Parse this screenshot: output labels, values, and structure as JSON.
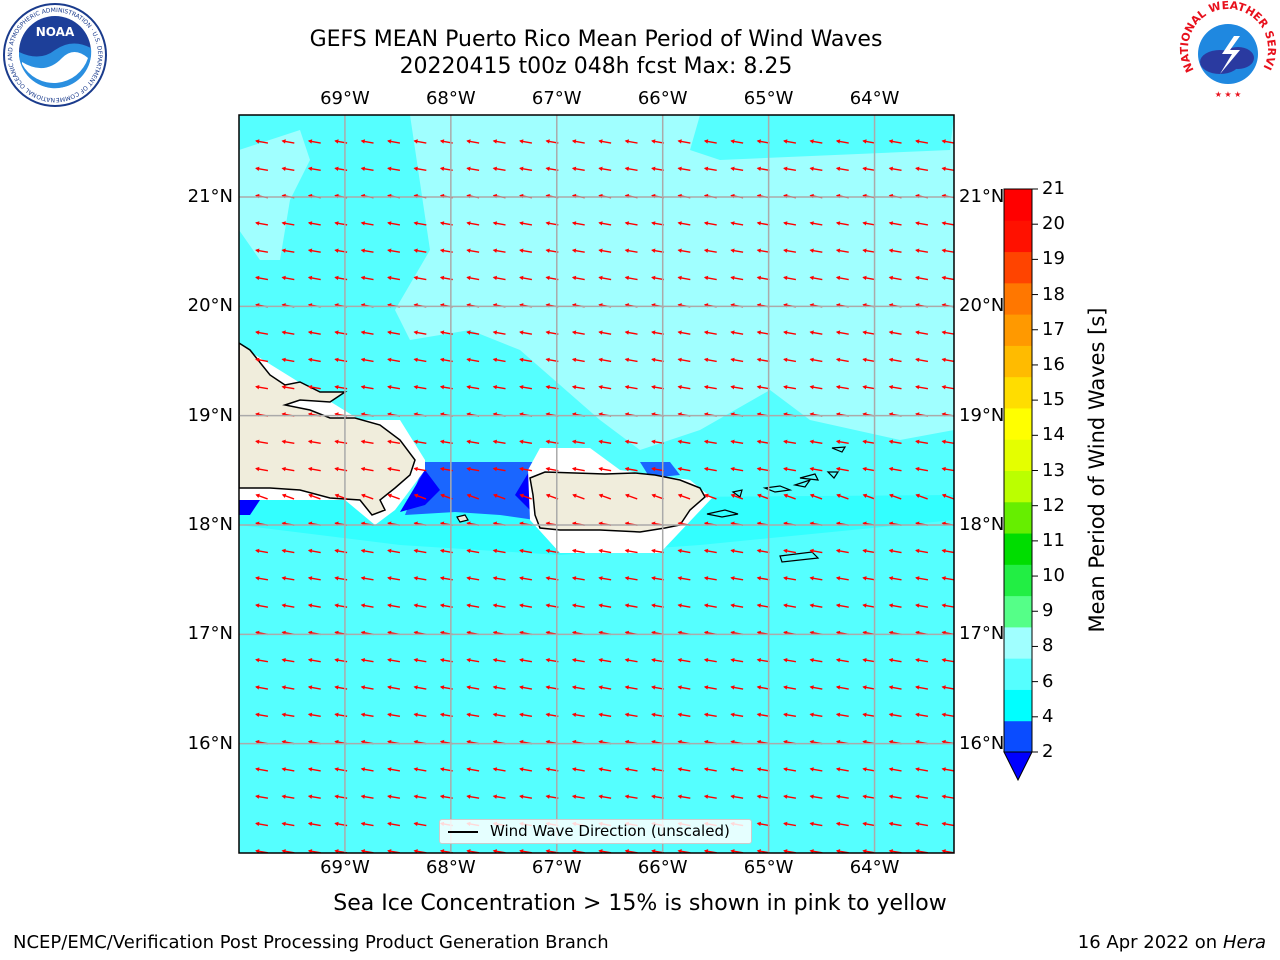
{
  "header": {
    "title_line1": "GEFS MEAN Puerto Rico Mean Period of Wind Waves",
    "title_line2": "20220415 t00z 048h fcst   Max: 8.25"
  },
  "logos": {
    "noaa_text": "NOAA",
    "noaa_ring_text": "NATIONAL OCEANIC AND ATMOSPHERIC ADMINISTRATION · U.S. DEPARTMENT OF COMMERCE",
    "nws_ring_text": "NATIONAL WEATHER SERVICE"
  },
  "map": {
    "lon_labels": [
      "69°W",
      "68°W",
      "67°W",
      "66°W",
      "65°W",
      "64°W"
    ],
    "lat_labels": [
      "21°N",
      "20°N",
      "19°N",
      "18°N",
      "17°N",
      "16°N"
    ],
    "lon_range": [
      -70.0,
      -63.25
    ],
    "lat_range": [
      15.0,
      21.75
    ],
    "grid": true,
    "land_color": "#f0eddc",
    "wind_vector_color": "#ff0000",
    "wind_direction": "toward west-southwest"
  },
  "colorbar": {
    "title": "Mean Period of Wind Waves [s]",
    "tick_labels": [
      "2",
      "4",
      "6",
      "8",
      "9",
      "10",
      "11",
      "12",
      "13",
      "14",
      "15",
      "16",
      "17",
      "18",
      "19",
      "20",
      "21"
    ],
    "colors": [
      "#0a4cff",
      "#00ffff",
      "#55ffff",
      "#a0ffff",
      "#55ff88",
      "#22ee44",
      "#00dd00",
      "#66ee00",
      "#bbff00",
      "#e4ff00",
      "#ffff00",
      "#ffdd00",
      "#ffbb00",
      "#ff9900",
      "#ff7700",
      "#ff4400",
      "#ff1100",
      "#ff0000"
    ],
    "under_color": "#0000ff"
  },
  "legend": {
    "label": "Wind Wave Direction (unscaled)"
  },
  "notes": {
    "sea_ice": "Sea Ice Concentration > 15% is shown in pink to yellow",
    "producer": "NCEP/EMC/Verification Post Processing Product Generation Branch",
    "date": "16 Apr 2022 on ",
    "machine": "Hera"
  }
}
